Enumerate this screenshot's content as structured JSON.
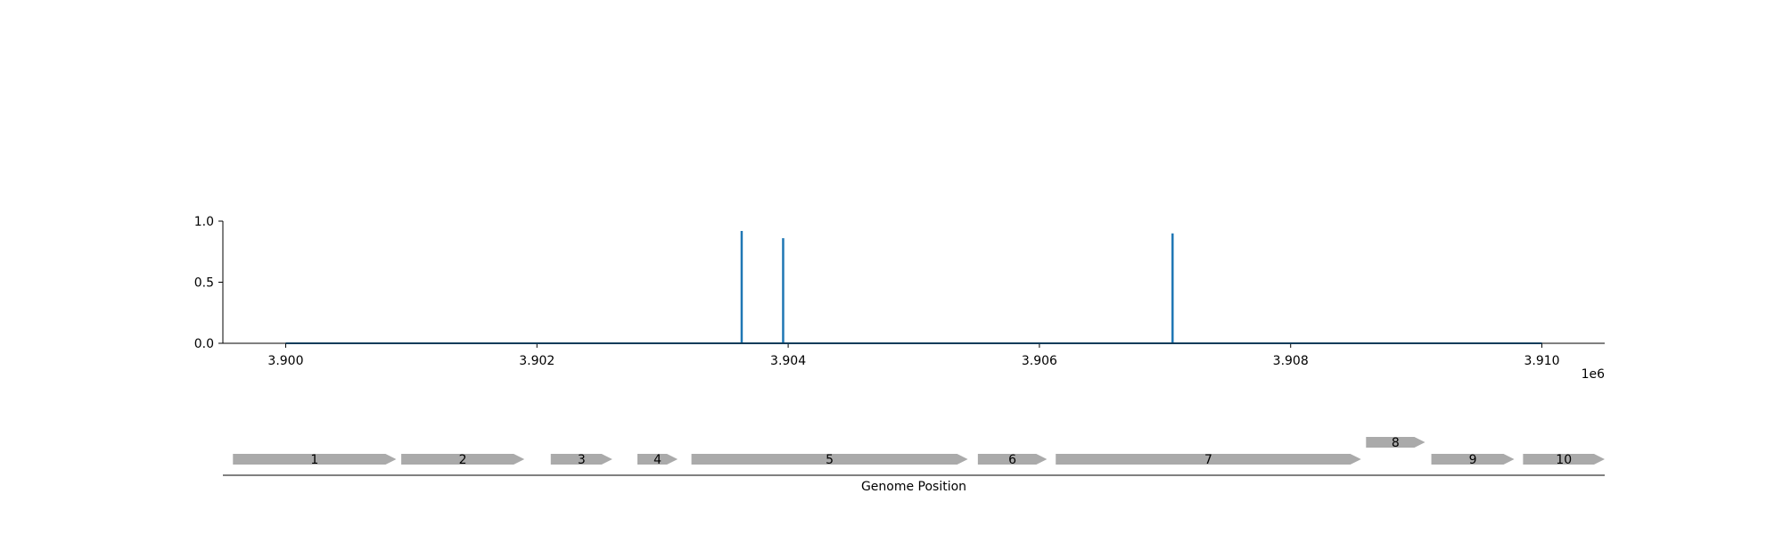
{
  "chart_data": {
    "type": "line",
    "title": "",
    "top_panel": {
      "xlabel": "",
      "ylabel": "",
      "xlim": [
        3899500,
        3910500
      ],
      "ylim": [
        0,
        1.0
      ],
      "x_offset_label": "1e6",
      "x_ticks": [
        3900000,
        3902000,
        3904000,
        3906000,
        3908000,
        3910000
      ],
      "x_tick_labels": [
        "3.900",
        "3.902",
        "3.904",
        "3.906",
        "3.908",
        "3.910"
      ],
      "y_ticks": [
        0.0,
        0.5,
        1.0
      ],
      "y_tick_labels": [
        "0.0",
        "0.5",
        "1.0"
      ],
      "grid": false,
      "series": [
        {
          "color": "#1f77b4",
          "baseline_range": [
            3900000,
            3910000
          ],
          "x": [
            3903630,
            3903960,
            3907060
          ],
          "y": [
            0.92,
            0.86,
            0.9
          ]
        }
      ]
    },
    "gene_track": {
      "xlabel": "Genome Position",
      "gene_color": "#aaaaaa",
      "genes": [
        {
          "label": "1",
          "start": 3899580,
          "end": 3900880,
          "strand": "+",
          "row": 0
        },
        {
          "label": "2",
          "start": 3900920,
          "end": 3901900,
          "strand": "+",
          "row": 0
        },
        {
          "label": "3",
          "start": 3902110,
          "end": 3902600,
          "strand": "+",
          "row": 0
        },
        {
          "label": "4",
          "start": 3902800,
          "end": 3903120,
          "strand": "+",
          "row": 0
        },
        {
          "label": "5",
          "start": 3903230,
          "end": 3905430,
          "strand": "+",
          "row": 0
        },
        {
          "label": "6",
          "start": 3905510,
          "end": 3906060,
          "strand": "+",
          "row": 0
        },
        {
          "label": "7",
          "start": 3906130,
          "end": 3908560,
          "strand": "+",
          "row": 0
        },
        {
          "label": "8",
          "start": 3908600,
          "end": 3909070,
          "strand": "+",
          "row": 1
        },
        {
          "label": "9",
          "start": 3909120,
          "end": 3909780,
          "strand": "+",
          "row": 0
        },
        {
          "label": "10",
          "start": 3909850,
          "end": 3910500,
          "strand": "+",
          "row": 0
        }
      ]
    }
  }
}
